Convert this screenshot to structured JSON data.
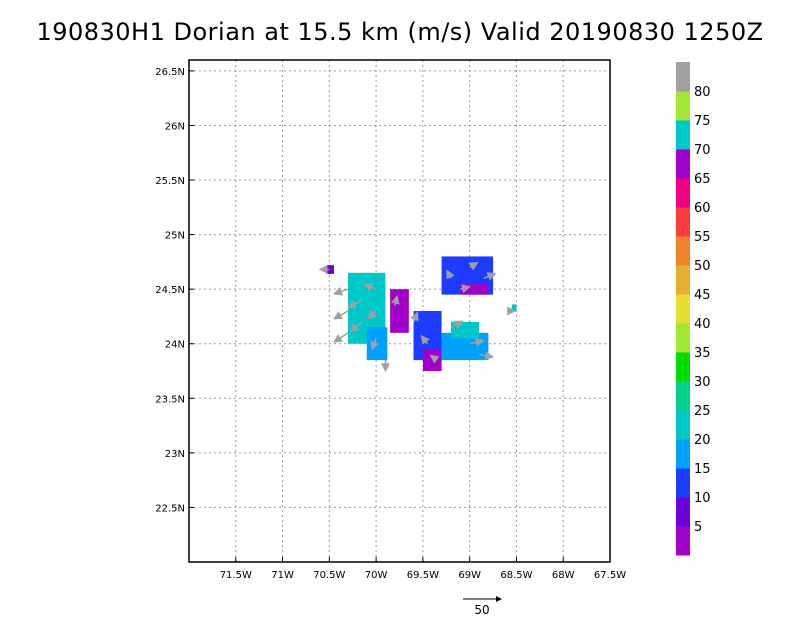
{
  "title": "190830H1 Dorian at 15.5 km (m/s) Valid 20190830  1250Z",
  "chart_data": {
    "type": "heatmap",
    "title": "190830H1 Dorian at 15.5 km (m/s) Valid 20190830  1250Z",
    "xlim": [
      -72.0,
      -67.5
    ],
    "ylim": [
      22.0,
      26.6
    ],
    "x_ticks": [
      -71.5,
      -71,
      -70.5,
      -70,
      -69.5,
      -69,
      -68.5,
      -68,
      -67.5
    ],
    "x_tick_labels": [
      "71.5W",
      "71W",
      "70.5W",
      "70W",
      "69.5W",
      "69W",
      "68.5W",
      "68W",
      "67.5W"
    ],
    "y_ticks": [
      22.5,
      23,
      23.5,
      24,
      24.5,
      25,
      25.5,
      26,
      26.5
    ],
    "y_tick_labels": [
      "22.5N",
      "23N",
      "23.5N",
      "24N",
      "24.5N",
      "25N",
      "25.5N",
      "26N",
      "26.5N"
    ],
    "grid": true,
    "colorbar": {
      "levels": [
        0,
        5,
        10,
        15,
        20,
        25,
        30,
        35,
        40,
        45,
        50,
        55,
        60,
        65,
        70,
        75,
        80,
        85
      ],
      "labels": [
        "5",
        "10",
        "15",
        "20",
        "25",
        "30",
        "35",
        "40",
        "45",
        "50",
        "55",
        "60",
        "65",
        "70",
        "75",
        "80"
      ],
      "colors": [
        "#a000c8",
        "#6e00dc",
        "#1e3cff",
        "#00a0ff",
        "#00c8c8",
        "#00d28c",
        "#00dc00",
        "#a0e632",
        "#e6dc32",
        "#e6af2d",
        "#f08228",
        "#fa3c3c",
        "#f00082",
        "#a000c8",
        "#00c8c8",
        "#a0e632",
        "#a0a0a0"
      ]
    },
    "regions": [
      {
        "lon": [
          -70.53,
          -70.45
        ],
        "lat": [
          24.64,
          24.72
        ],
        "speed": 8
      },
      {
        "lon": [
          -70.3,
          -69.9
        ],
        "lat": [
          24.0,
          24.65
        ],
        "speed": 22
      },
      {
        "lon": [
          -70.1,
          -69.88
        ],
        "lat": [
          23.85,
          24.15
        ],
        "speed": 17
      },
      {
        "lon": [
          -69.85,
          -69.65
        ],
        "lat": [
          24.1,
          24.5
        ],
        "speed": 3
      },
      {
        "lon": [
          -69.6,
          -69.3
        ],
        "lat": [
          23.85,
          24.3
        ],
        "speed": 12
      },
      {
        "lon": [
          -69.5,
          -69.3
        ],
        "lat": [
          23.75,
          23.95
        ],
        "speed": 4
      },
      {
        "lon": [
          -69.3,
          -68.8
        ],
        "lat": [
          23.85,
          24.1
        ],
        "speed": 16
      },
      {
        "lon": [
          -69.2,
          -68.9
        ],
        "lat": [
          24.05,
          24.2
        ],
        "speed": 22
      },
      {
        "lon": [
          -69.3,
          -68.75
        ],
        "lat": [
          24.45,
          24.8
        ],
        "speed": 10
      },
      {
        "lon": [
          -69.1,
          -68.8
        ],
        "lat": [
          24.45,
          24.55
        ],
        "speed": 4
      },
      {
        "lon": [
          -68.55,
          -68.5
        ],
        "lat": [
          24.3,
          24.36
        ],
        "speed": 20
      }
    ],
    "vectors": [
      {
        "lon": -70.5,
        "lat": 24.68,
        "u": -12,
        "v": 0
      },
      {
        "lon": -70.3,
        "lat": 24.5,
        "u": -18,
        "v": -6
      },
      {
        "lon": -70.3,
        "lat": 24.3,
        "u": -18,
        "v": -10
      },
      {
        "lon": -70.3,
        "lat": 24.1,
        "u": -18,
        "v": -12
      },
      {
        "lon": -70.15,
        "lat": 24.4,
        "u": -18,
        "v": -10
      },
      {
        "lon": -70.15,
        "lat": 24.2,
        "u": -15,
        "v": -12
      },
      {
        "lon": -70.0,
        "lat": 24.5,
        "u": -15,
        "v": 6
      },
      {
        "lon": -70.0,
        "lat": 24.3,
        "u": -10,
        "v": -10
      },
      {
        "lon": -70.0,
        "lat": 24.05,
        "u": -5,
        "v": -14
      },
      {
        "lon": -69.9,
        "lat": 23.85,
        "u": 0,
        "v": -14
      },
      {
        "lon": -69.8,
        "lat": 24.35,
        "u": 3,
        "v": 12
      },
      {
        "lon": -69.6,
        "lat": 24.2,
        "u": 5,
        "v": 12
      },
      {
        "lon": -69.45,
        "lat": 24.0,
        "u": -8,
        "v": 10
      },
      {
        "lon": -69.35,
        "lat": 23.85,
        "u": -8,
        "v": 6
      },
      {
        "lon": -69.2,
        "lat": 24.15,
        "u": 15,
        "v": 8
      },
      {
        "lon": -69.0,
        "lat": 24.0,
        "u": 18,
        "v": 4
      },
      {
        "lon": -68.9,
        "lat": 23.9,
        "u": 18,
        "v": -3
      },
      {
        "lon": -69.2,
        "lat": 24.6,
        "u": -5,
        "v": 10
      },
      {
        "lon": -69.0,
        "lat": 24.7,
        "u": 10,
        "v": 6
      },
      {
        "lon": -68.85,
        "lat": 24.6,
        "u": 15,
        "v": 6
      },
      {
        "lon": -69.1,
        "lat": 24.5,
        "u": 12,
        "v": 3
      },
      {
        "lon": -68.6,
        "lat": 24.3,
        "u": 10,
        "v": 0
      }
    ],
    "reference_vector": {
      "label": "50",
      "value": 50
    }
  }
}
